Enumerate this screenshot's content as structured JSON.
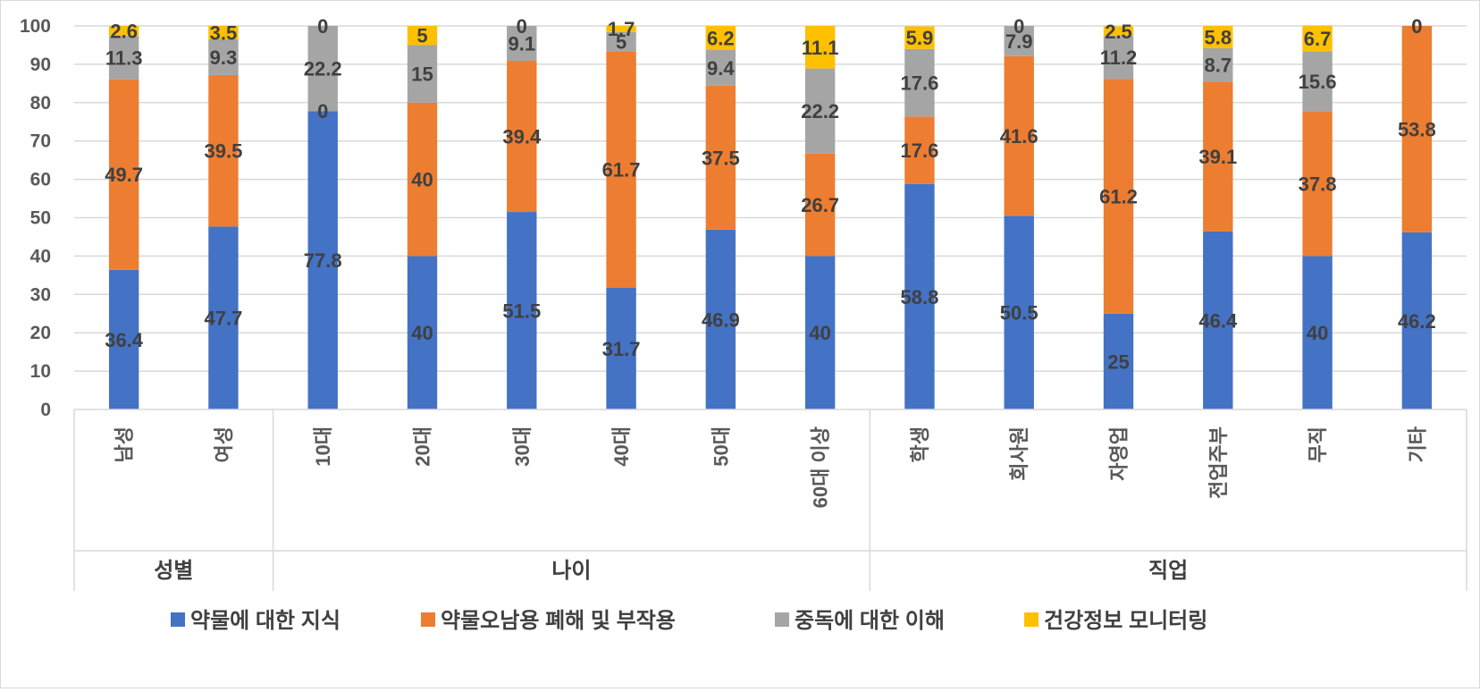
{
  "chart_data": {
    "type": "bar",
    "stacked": true,
    "ylim": [
      0,
      100
    ],
    "yticks": [
      0,
      10,
      20,
      30,
      40,
      50,
      60,
      70,
      80,
      90,
      100
    ],
    "grid": true,
    "legend_position": "bottom",
    "categories": [
      "남성",
      "여성",
      "10대",
      "20대",
      "30대",
      "40대",
      "50대",
      "60대 이상",
      "학생",
      "회사원",
      "자영업",
      "전업주부",
      "무직",
      "기타"
    ],
    "groups": [
      {
        "label": "성별",
        "count": 2
      },
      {
        "label": "나이",
        "count": 6
      },
      {
        "label": "직업",
        "count": 6
      }
    ],
    "series": [
      {
        "name": "약물에 대한 지식",
        "color": "#4472C4",
        "values": [
          36.4,
          47.7,
          77.8,
          40,
          51.5,
          31.7,
          46.9,
          40,
          58.8,
          50.5,
          25,
          46.4,
          40,
          46.2
        ]
      },
      {
        "name": "약물오남용 폐해 및 부작용",
        "color": "#ED7D31",
        "values": [
          49.7,
          39.5,
          0,
          40,
          39.4,
          61.7,
          37.5,
          26.7,
          17.6,
          41.6,
          61.2,
          39.1,
          37.8,
          53.8
        ]
      },
      {
        "name": "중독에 대한 이해",
        "color": "#A5A5A5",
        "values": [
          11.3,
          9.3,
          22.2,
          15,
          9.1,
          5,
          9.4,
          22.2,
          17.6,
          7.9,
          11.2,
          8.7,
          15.6,
          0
        ]
      },
      {
        "name": "건강정보 모니터링",
        "color": "#FFC000",
        "values": [
          2.6,
          3.5,
          0,
          5,
          0,
          1.7,
          6.2,
          11.1,
          5.9,
          0,
          2.5,
          5.8,
          6.7,
          0
        ]
      }
    ]
  }
}
